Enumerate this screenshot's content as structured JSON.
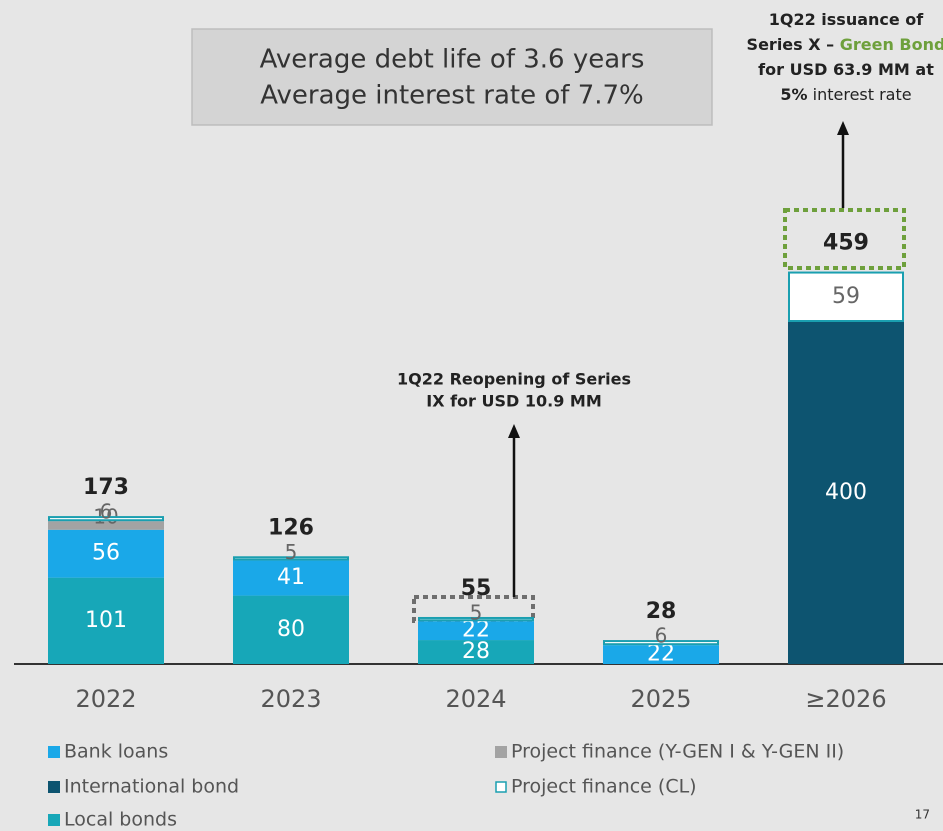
{
  "chart_data": {
    "type": "stacked-bar",
    "info_box": [
      "Average debt life of 3.6 years",
      "Average interest rate of 7.7%"
    ],
    "categories": [
      "2022",
      "2023",
      "2024",
      "2025",
      "≥2026"
    ],
    "series": [
      {
        "name": "Local bonds",
        "color": "#17a7b8",
        "values": [
          101,
          80,
          28,
          null,
          null
        ]
      },
      {
        "name": "Bank loans",
        "color": "#1aa8e8",
        "values": [
          56,
          41,
          22,
          22,
          null
        ]
      },
      {
        "name": "Project finance (Y-GEN I & Y-GEN II)",
        "color": "#a3a3a3",
        "values": [
          10,
          null,
          null,
          null,
          null
        ]
      },
      {
        "name": "International bond",
        "color": "#0d5470",
        "values": [
          null,
          null,
          null,
          null,
          400
        ]
      },
      {
        "name": "Project finance (CL)",
        "color": "#1a9fb0",
        "outline": true,
        "values": [
          6,
          5,
          5,
          6,
          59
        ]
      }
    ],
    "totals": [
      173,
      126,
      55,
      28,
      459
    ],
    "annotations": [
      {
        "lines": [
          "1Q22 Reopening of Series",
          "IX for USD 10.9 MM"
        ]
      },
      {
        "lines": [
          [
            "1Q22 issuance of"
          ],
          [
            "Series X – ",
            "Green Bond"
          ],
          [
            "for USD 63.9 MM at"
          ],
          [
            "5%",
            " interest rate"
          ]
        ]
      }
    ],
    "page_number": "17"
  }
}
